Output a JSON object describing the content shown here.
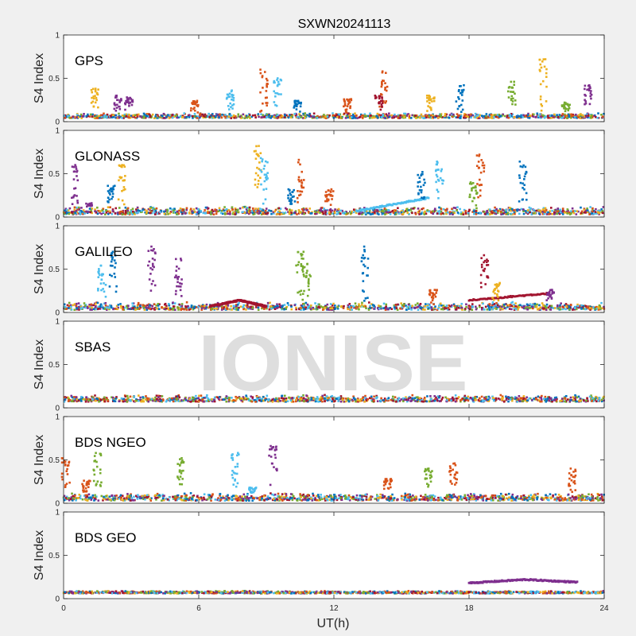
{
  "title": "SXWN20241113",
  "watermark": "IONISE",
  "xlabel": "UT(h)",
  "ylabel": "S4 Index",
  "xticks": [
    "0",
    "6",
    "12",
    "18",
    "24"
  ],
  "yticks": [
    "0",
    "0.5",
    "1"
  ],
  "colors": {
    "figure_bg": "#f0f0f0",
    "axes_bg": "#ffffff",
    "watermark": "#dedede",
    "series": [
      "#0072BD",
      "#D95319",
      "#EDB120",
      "#7E2F8E",
      "#77AC30",
      "#4DBEEE",
      "#A2142F"
    ]
  },
  "chart_data": [
    {
      "type": "scatter",
      "label": "GPS",
      "xlim": [
        0,
        24
      ],
      "ylim": [
        0,
        1
      ],
      "baseline": [
        0.04,
        0.1
      ],
      "spikes": [
        {
          "x": 1.4,
          "peak": 0.38,
          "color": "#EDB120"
        },
        {
          "x": 2.4,
          "peak": 0.3,
          "color": "#7E2F8E"
        },
        {
          "x": 2.9,
          "peak": 0.28,
          "color": "#7E2F8E"
        },
        {
          "x": 5.8,
          "peak": 0.24,
          "color": "#D95319"
        },
        {
          "x": 7.4,
          "peak": 0.36,
          "color": "#4DBEEE"
        },
        {
          "x": 8.9,
          "peak": 0.6,
          "color": "#D95319"
        },
        {
          "x": 9.5,
          "peak": 0.5,
          "color": "#4DBEEE"
        },
        {
          "x": 10.4,
          "peak": 0.24,
          "color": "#0072BD"
        },
        {
          "x": 12.6,
          "peak": 0.26,
          "color": "#D95319"
        },
        {
          "x": 14.2,
          "peak": 0.58,
          "color": "#D95319"
        },
        {
          "x": 14.0,
          "peak": 0.3,
          "color": "#A2142F"
        },
        {
          "x": 16.3,
          "peak": 0.3,
          "color": "#EDB120"
        },
        {
          "x": 17.6,
          "peak": 0.42,
          "color": "#0072BD"
        },
        {
          "x": 19.9,
          "peak": 0.46,
          "color": "#77AC30"
        },
        {
          "x": 21.3,
          "peak": 0.72,
          "color": "#EDB120"
        },
        {
          "x": 22.3,
          "peak": 0.22,
          "color": "#77AC30"
        },
        {
          "x": 23.3,
          "peak": 0.42,
          "color": "#7E2F8E"
        }
      ],
      "tracks": []
    },
    {
      "type": "scatter",
      "label": "GLONASS",
      "xlim": [
        0,
        24
      ],
      "ylim": [
        0,
        1
      ],
      "baseline": [
        0.03,
        0.12
      ],
      "spikes": [
        {
          "x": 0.5,
          "peak": 0.6,
          "color": "#7E2F8E"
        },
        {
          "x": 1.1,
          "peak": 0.16,
          "color": "#7E2F8E"
        },
        {
          "x": 2.1,
          "peak": 0.36,
          "color": "#0072BD"
        },
        {
          "x": 2.6,
          "peak": 0.6,
          "color": "#EDB120"
        },
        {
          "x": 8.6,
          "peak": 0.82,
          "color": "#EDB120"
        },
        {
          "x": 8.9,
          "peak": 0.68,
          "color": "#4DBEEE"
        },
        {
          "x": 10.5,
          "peak": 0.66,
          "color": "#D95319"
        },
        {
          "x": 10.1,
          "peak": 0.32,
          "color": "#0072BD"
        },
        {
          "x": 11.8,
          "peak": 0.32,
          "color": "#D95319"
        },
        {
          "x": 15.9,
          "peak": 0.52,
          "color": "#0072BD"
        },
        {
          "x": 16.7,
          "peak": 0.64,
          "color": "#4DBEEE"
        },
        {
          "x": 18.5,
          "peak": 0.72,
          "color": "#D95319"
        },
        {
          "x": 18.2,
          "peak": 0.4,
          "color": "#77AC30"
        },
        {
          "x": 20.4,
          "peak": 0.64,
          "color": "#0072BD"
        }
      ],
      "tracks": [
        {
          "from": [
            13.0,
            0.07
          ],
          "to": [
            16.2,
            0.22
          ],
          "color": "#4DBEEE"
        }
      ]
    },
    {
      "type": "scatter",
      "label": "GALILEO",
      "xlim": [
        0,
        24
      ],
      "ylim": [
        0,
        1
      ],
      "baseline": [
        0.03,
        0.12
      ],
      "spikes": [
        {
          "x": 1.7,
          "peak": 0.54,
          "color": "#4DBEEE"
        },
        {
          "x": 2.2,
          "peak": 0.7,
          "color": "#0072BD"
        },
        {
          "x": 3.9,
          "peak": 0.76,
          "color": "#7E2F8E"
        },
        {
          "x": 5.1,
          "peak": 0.62,
          "color": "#7E2F8E"
        },
        {
          "x": 10.5,
          "peak": 0.7,
          "color": "#77AC30"
        },
        {
          "x": 10.8,
          "peak": 0.56,
          "color": "#77AC30"
        },
        {
          "x": 13.4,
          "peak": 0.76,
          "color": "#0072BD"
        },
        {
          "x": 16.4,
          "peak": 0.26,
          "color": "#D95319"
        },
        {
          "x": 18.7,
          "peak": 0.66,
          "color": "#A2142F"
        },
        {
          "x": 19.2,
          "peak": 0.34,
          "color": "#EDB120"
        },
        {
          "x": 21.6,
          "peak": 0.26,
          "color": "#7E2F8E"
        }
      ],
      "tracks": [
        {
          "from": [
            18.0,
            0.14
          ],
          "to": [
            21.5,
            0.22
          ],
          "color": "#A2142F"
        },
        {
          "from": [
            6.5,
            0.07
          ],
          "to": [
            7.8,
            0.14
          ],
          "color": "#A2142F"
        },
        {
          "from": [
            7.8,
            0.14
          ],
          "to": [
            9.0,
            0.07
          ],
          "color": "#A2142F"
        }
      ]
    },
    {
      "type": "scatter",
      "label": "SBAS",
      "xlim": [
        0,
        24
      ],
      "ylim": [
        0,
        1
      ],
      "baseline": [
        0.07,
        0.15
      ],
      "spikes": [],
      "tracks": []
    },
    {
      "type": "scatter",
      "label": "BDS NGEO",
      "xlim": [
        0,
        24
      ],
      "ylim": [
        0,
        1
      ],
      "baseline": [
        0.03,
        0.12
      ],
      "spikes": [
        {
          "x": 0.1,
          "peak": 0.52,
          "color": "#D95319"
        },
        {
          "x": 1.0,
          "peak": 0.26,
          "color": "#D95319"
        },
        {
          "x": 1.5,
          "peak": 0.58,
          "color": "#77AC30"
        },
        {
          "x": 5.2,
          "peak": 0.52,
          "color": "#77AC30"
        },
        {
          "x": 7.6,
          "peak": 0.58,
          "color": "#4DBEEE"
        },
        {
          "x": 8.4,
          "peak": 0.18,
          "color": "#4DBEEE"
        },
        {
          "x": 9.3,
          "peak": 0.66,
          "color": "#7E2F8E"
        },
        {
          "x": 14.4,
          "peak": 0.28,
          "color": "#D95319"
        },
        {
          "x": 16.2,
          "peak": 0.4,
          "color": "#77AC30"
        },
        {
          "x": 17.3,
          "peak": 0.46,
          "color": "#D95319"
        },
        {
          "x": 22.6,
          "peak": 0.4,
          "color": "#D95319"
        }
      ],
      "tracks": []
    },
    {
      "type": "scatter",
      "label": "BDS GEO",
      "xlim": [
        0,
        24
      ],
      "ylim": [
        0,
        1
      ],
      "baseline": [
        0.06,
        0.09
      ],
      "spikes": [],
      "tracks": [
        {
          "from": [
            18.0,
            0.18
          ],
          "to": [
            20.5,
            0.22
          ],
          "color": "#7E2F8E"
        },
        {
          "from": [
            20.5,
            0.22
          ],
          "to": [
            22.8,
            0.19
          ],
          "color": "#7E2F8E"
        }
      ]
    }
  ]
}
